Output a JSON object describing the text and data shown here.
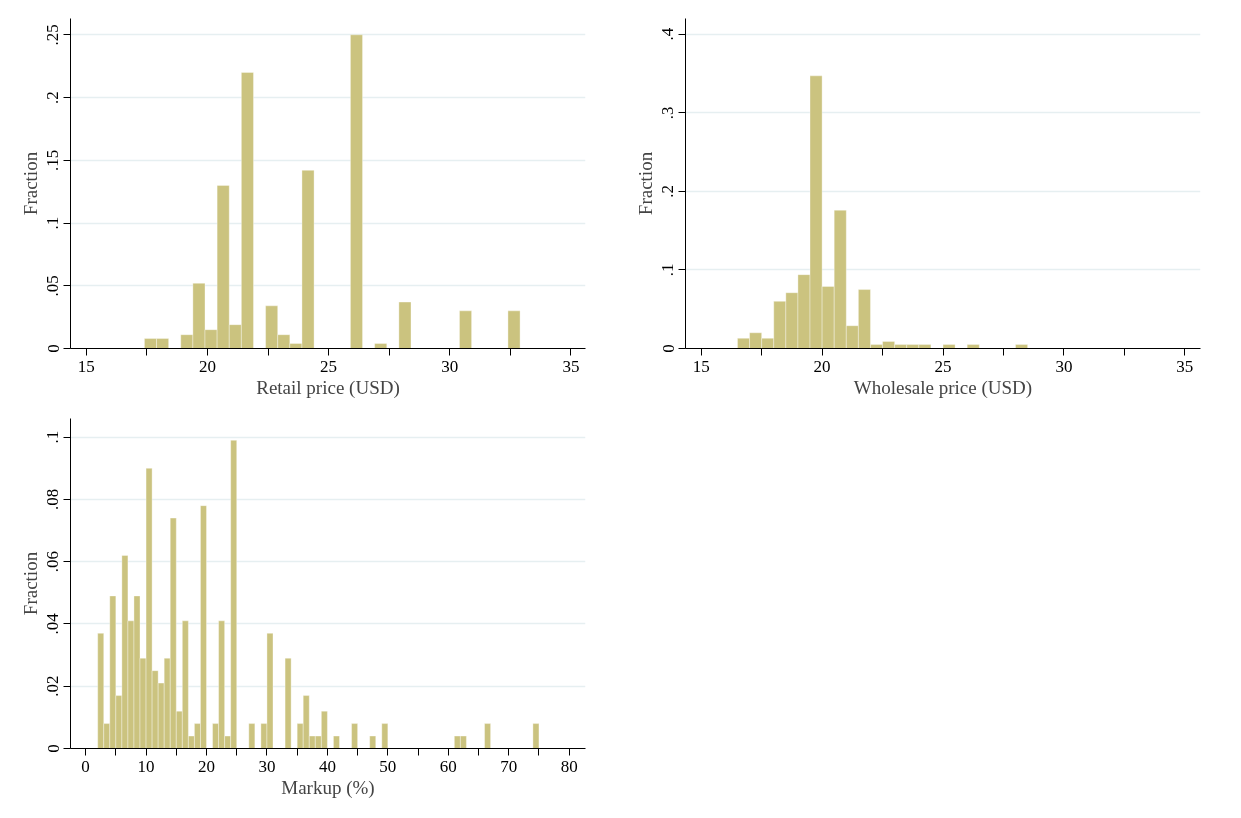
{
  "chart_data": [
    {
      "type": "histogram",
      "xlabel": "Retail price (USD)",
      "ylabel": "Fraction",
      "color": "#cbc37f",
      "bins": [
        17.4,
        17.9,
        18.4,
        18.9,
        19.4,
        19.9,
        20.4,
        20.9,
        21.4,
        21.9,
        22.4,
        22.9,
        23.4,
        23.9,
        24.4,
        24.9,
        25.4,
        25.9,
        26.4,
        26.9,
        27.4,
        27.9,
        28.4,
        28.9,
        29.4,
        29.9,
        30.4,
        30.9,
        31.4,
        31.9,
        32.4,
        32.9
      ],
      "values": [
        0.008,
        0.008,
        0,
        0.011,
        0.052,
        0.015,
        0.13,
        0.019,
        0.22,
        0,
        0.034,
        0.011,
        0.004,
        0.142,
        0,
        0,
        0,
        0.25,
        0,
        0.004,
        0,
        0.037,
        0,
        0,
        0,
        0,
        0.03,
        0,
        0,
        0,
        0.03
      ],
      "xlim": [
        14.35,
        35.6
      ],
      "ylim": [
        0,
        0.263
      ],
      "xticks": [
        15,
        {
          "value": 17.5,
          "label": null
        },
        20,
        {
          "value": 22.5,
          "label": null
        },
        25,
        {
          "value": 27.5,
          "label": null
        },
        30,
        {
          "value": 32.5,
          "label": null
        },
        35
      ],
      "yticks": [
        0,
        {
          "value": 0.05,
          "label": ".05"
        },
        {
          "value": 0.1,
          "label": ".1"
        },
        {
          "value": 0.15,
          "label": ".15"
        },
        {
          "value": 0.2,
          "label": ".2"
        },
        {
          "value": 0.25,
          "label": ".25"
        }
      ],
      "grid": "y"
    },
    {
      "type": "histogram",
      "xlabel": "Wholesale price (USD)",
      "ylabel": "Fraction",
      "color": "#cbc37f",
      "bins": [
        16.5,
        17.0,
        17.5,
        18.0,
        18.5,
        19.0,
        19.5,
        20.0,
        20.5,
        21.0,
        21.5,
        22.0,
        22.5,
        23.0,
        23.5,
        24.0,
        24.5,
        25.0,
        25.5,
        26.0,
        26.5,
        27.0,
        27.5,
        28.0,
        28.5
      ],
      "values": [
        0.013,
        0.02,
        0.013,
        0.06,
        0.071,
        0.094,
        0.347,
        0.079,
        0.176,
        0.029,
        0.075,
        0.005,
        0.009,
        0.005,
        0.005,
        0.005,
        0,
        0.005,
        0,
        0.005,
        0,
        0,
        0,
        0.005
      ],
      "xlim": [
        14.35,
        35.65
      ],
      "ylim": [
        0,
        0.42
      ],
      "xticks": [
        15,
        {
          "value": 17.5,
          "label": null
        },
        20,
        {
          "value": 22.5,
          "label": null
        },
        25,
        {
          "value": 27.5,
          "label": null
        },
        30,
        {
          "value": 32.5,
          "label": null
        },
        35
      ],
      "yticks": [
        0,
        {
          "value": 0.1,
          "label": ".1"
        },
        {
          "value": 0.2,
          "label": ".2"
        },
        {
          "value": 0.3,
          "label": ".3"
        },
        {
          "value": 0.4,
          "label": ".4"
        }
      ],
      "grid": "y"
    },
    {
      "type": "histogram",
      "xlabel": "Markup (%)",
      "ylabel": "Fraction",
      "color": "#cbc37f",
      "bins": [
        2,
        3,
        4,
        5,
        6,
        7,
        8,
        9,
        10,
        11,
        12,
        13,
        14,
        15,
        16,
        17,
        18,
        19,
        20,
        21,
        22,
        23,
        24,
        25,
        26,
        27,
        28,
        29,
        30,
        31,
        32,
        33,
        34,
        35,
        36,
        37,
        38,
        39,
        40,
        41,
        42,
        43,
        44,
        45,
        46,
        47,
        48,
        49,
        50,
        51,
        52,
        53,
        54,
        55,
        56,
        57,
        58,
        59,
        60,
        61,
        62,
        63,
        64,
        65,
        66,
        67,
        68,
        69,
        70,
        71,
        72,
        73,
        74,
        75
      ],
      "values": [
        0.037,
        0.008,
        0.049,
        0.017,
        0.062,
        0.041,
        0.049,
        0.029,
        0.09,
        0.025,
        0.021,
        0.029,
        0.074,
        0.012,
        0.041,
        0.004,
        0.008,
        0.078,
        0,
        0.008,
        0.041,
        0.004,
        0.099,
        0,
        0,
        0.008,
        0,
        0.008,
        0.037,
        0,
        0,
        0.029,
        0,
        0.008,
        0.017,
        0.004,
        0.004,
        0.012,
        0,
        0.004,
        0,
        0,
        0.008,
        0,
        0,
        0.004,
        0,
        0.008,
        0,
        0,
        0,
        0,
        0,
        0,
        0,
        0,
        0,
        0,
        0,
        0.004,
        0.004,
        0,
        0,
        0,
        0.008,
        0,
        0,
        0,
        0,
        0,
        0,
        0,
        0.008
      ],
      "xlim": [
        -2.5,
        82.7
      ],
      "ylim": [
        0,
        0.106
      ],
      "xticks": [
        0,
        {
          "value": 5,
          "label": null
        },
        10,
        {
          "value": 15,
          "label": null
        },
        20,
        {
          "value": 25,
          "label": null
        },
        30,
        {
          "value": 35,
          "label": null
        },
        40,
        {
          "value": 45,
          "label": null
        },
        50,
        {
          "value": 55,
          "label": null
        },
        60,
        {
          "value": 65,
          "label": null
        },
        70,
        {
          "value": 75,
          "label": null
        },
        80
      ],
      "yticks": [
        0,
        {
          "value": 0.02,
          "label": ".02"
        },
        {
          "value": 0.04,
          "label": ".04"
        },
        {
          "value": 0.06,
          "label": ".06"
        },
        {
          "value": 0.08,
          "label": ".08"
        },
        {
          "value": 0.1,
          "label": ".1"
        }
      ],
      "grid": "y"
    }
  ]
}
